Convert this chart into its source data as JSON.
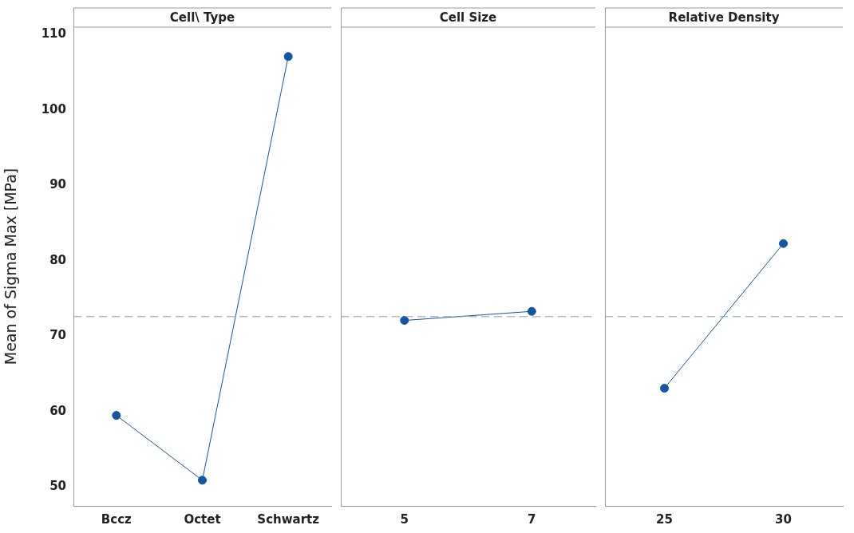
{
  "chart_data": [
    {
      "type": "line",
      "title": "Cell\\ Type",
      "ylabel": "Mean of Sigma Max [MPa]",
      "categories": [
        "Bccz",
        "Octet",
        "Schwartz"
      ],
      "values": [
        59.5,
        50.9,
        107.1
      ],
      "color": "#1456a0",
      "ylim": [
        47.5,
        111
      ],
      "yticks": [
        50,
        60,
        70,
        80,
        90,
        100,
        110
      ],
      "marker": "circle",
      "grid": false,
      "ref_lines": [
        {
          "axis": "y",
          "value": 72.6,
          "line_style": "dashed",
          "color": "#8c9aa6"
        }
      ]
    },
    {
      "type": "line",
      "title": "Cell Size",
      "categories": [
        "5",
        "7"
      ],
      "values": [
        72.1,
        73.3
      ],
      "color": "#1456a0",
      "ylim": [
        47.5,
        111
      ],
      "yticks": [
        50,
        60,
        70,
        80,
        90,
        100,
        110
      ],
      "marker": "circle",
      "grid": false,
      "tick_labels": "x",
      "ref_lines": [
        {
          "axis": "y",
          "value": 72.6,
          "line_style": "dashed",
          "color": "#8c9aa6"
        }
      ]
    },
    {
      "type": "line",
      "title": "Relative Density",
      "categories": [
        "25",
        "30"
      ],
      "values": [
        63.1,
        82.3
      ],
      "color": "#1456a0",
      "ylim": [
        47.5,
        111
      ],
      "yticks": [
        50,
        60,
        70,
        80,
        90,
        100,
        110
      ],
      "marker": "circle",
      "grid": false,
      "tick_labels": "x",
      "ref_lines": [
        {
          "axis": "y",
          "value": 72.6,
          "line_style": "dashed",
          "color": "#8c9aa6"
        }
      ]
    }
  ]
}
